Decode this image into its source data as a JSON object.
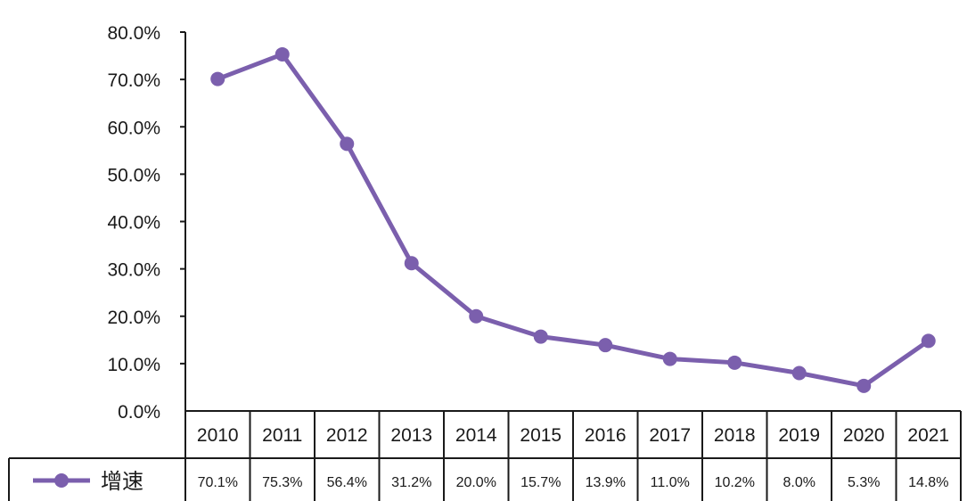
{
  "chart_data": {
    "type": "line",
    "categories": [
      "2010",
      "2011",
      "2012",
      "2013",
      "2014",
      "2015",
      "2016",
      "2017",
      "2018",
      "2019",
      "2020",
      "2021"
    ],
    "series": [
      {
        "name": "增速",
        "values": [
          70.1,
          75.3,
          56.4,
          31.2,
          20.0,
          15.7,
          13.9,
          11.0,
          10.2,
          8.0,
          5.3,
          14.8
        ],
        "labels": [
          "70.1%",
          "75.3%",
          "56.4%",
          "31.2%",
          "20.0%",
          "15.7%",
          "13.9%",
          "11.0%",
          "10.2%",
          "8.0%",
          "5.3%",
          "14.8%"
        ]
      }
    ],
    "ylim": [
      0,
      80
    ],
    "yticks": [
      "0.0%",
      "10.0%",
      "20.0%",
      "30.0%",
      "40.0%",
      "50.0%",
      "60.0%",
      "70.0%",
      "80.0%"
    ],
    "grid": false,
    "legend": "data-table-left",
    "data_table": true,
    "colors": {
      "series": "#7b5fad",
      "axis": "#1a1a1a"
    }
  }
}
